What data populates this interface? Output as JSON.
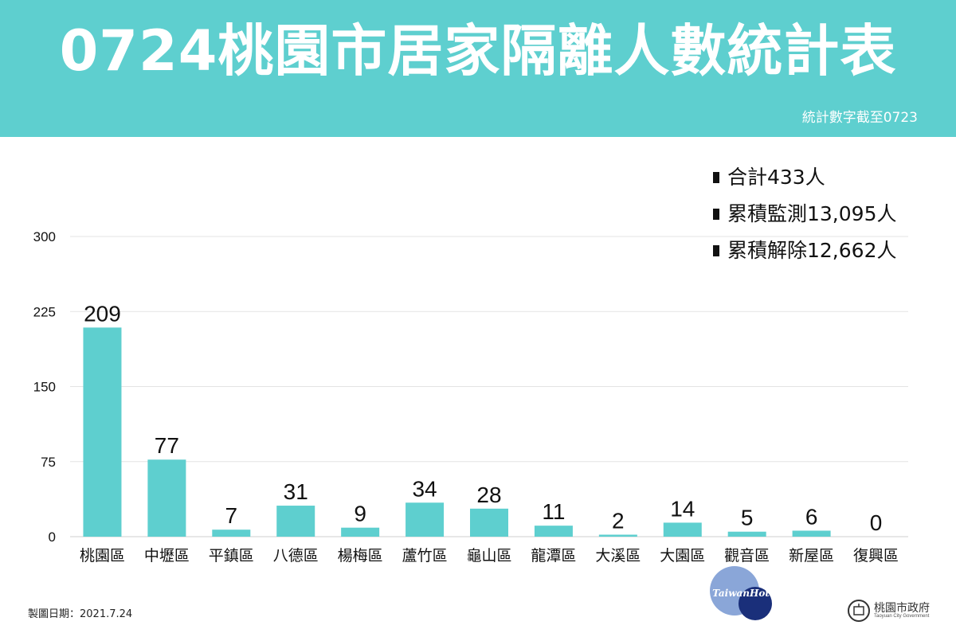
{
  "header": {
    "title": "0724桃園市居家隔離人數統計表",
    "subtitle": "統計數字截至0723"
  },
  "summary": [
    {
      "label": "合計433人"
    },
    {
      "label": "累積監測13,095人"
    },
    {
      "label": "累積解除12,662人"
    }
  ],
  "chart_data": {
    "type": "bar",
    "categories": [
      "桃園區",
      "中壢區",
      "平鎮區",
      "八德區",
      "楊梅區",
      "蘆竹區",
      "龜山區",
      "龍潭區",
      "大溪區",
      "大園區",
      "觀音區",
      "新屋區",
      "復興區"
    ],
    "values": [
      209,
      77,
      7,
      31,
      9,
      34,
      28,
      11,
      2,
      14,
      5,
      6,
      0
    ],
    "yticks": [
      0,
      75,
      150,
      225,
      300
    ],
    "ylim": [
      0,
      300
    ],
    "grid": true,
    "bar_color": "#5ecfcf"
  },
  "footer": {
    "date": "製圖日期：2021.7.24"
  },
  "logos": {
    "watermark_text": "TaiwanHot",
    "gov_name": "桃園市政府",
    "gov_sub": "Taoyuan City Government"
  },
  "colors": {
    "header_bg": "#5ecfcf",
    "accent": "#5ecfcf"
  }
}
